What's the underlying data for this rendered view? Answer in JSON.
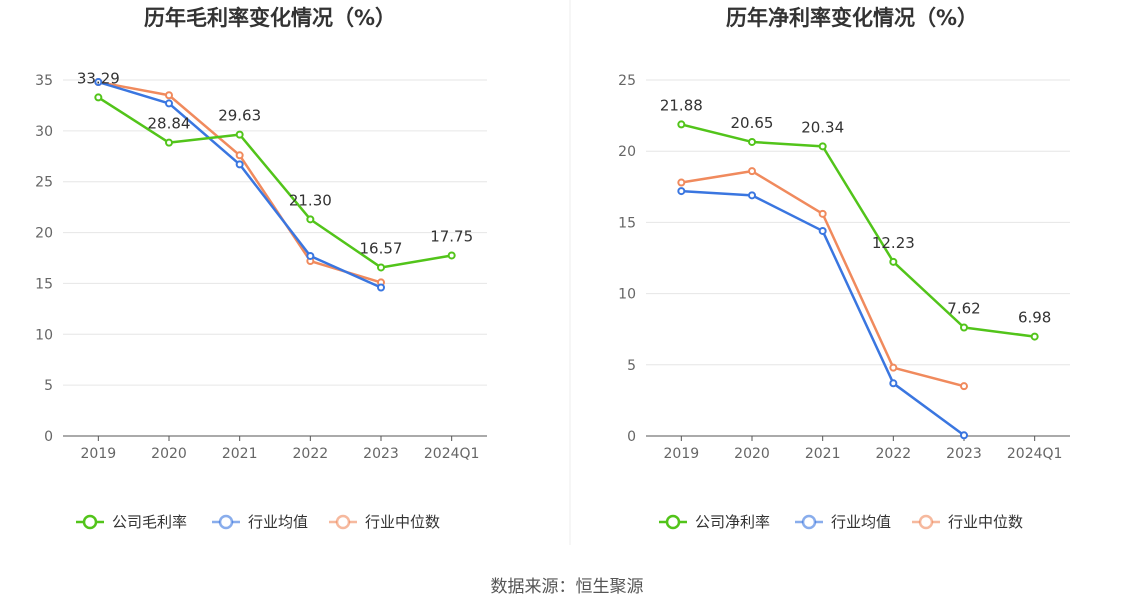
{
  "source_text": "数据来源：恒生聚源",
  "chart_data": [
    {
      "type": "line",
      "title": "历年毛利率变化情况（%）",
      "categories": [
        "2019",
        "2020",
        "2021",
        "2022",
        "2023",
        "2024Q1"
      ],
      "ylim": [
        0,
        35
      ],
      "yticks": [
        0,
        5,
        10,
        15,
        20,
        25,
        30,
        35
      ],
      "grid": true,
      "legend_position": "bottom",
      "labeled_series": 0,
      "series": [
        {
          "name": "公司毛利率",
          "color": "#52c41a",
          "values": [
            33.29,
            28.84,
            29.63,
            21.3,
            16.57,
            17.75
          ],
          "labels": [
            "33.29",
            "28.84",
            "29.63",
            "21.30",
            "16.57",
            "17.75"
          ]
        },
        {
          "name": "行业均值",
          "color": "#3a76e0",
          "values": [
            34.8,
            32.7,
            26.7,
            17.7,
            14.6,
            null
          ]
        },
        {
          "name": "行业中位数",
          "color": "#f08a5d",
          "values": [
            34.8,
            33.5,
            27.6,
            17.2,
            15.1,
            null
          ]
        }
      ]
    },
    {
      "type": "line",
      "title": "历年净利率变化情况（%）",
      "categories": [
        "2019",
        "2020",
        "2021",
        "2022",
        "2023",
        "2024Q1"
      ],
      "ylim": [
        0,
        25
      ],
      "yticks": [
        0,
        5,
        10,
        15,
        20,
        25
      ],
      "grid": true,
      "legend_position": "bottom",
      "labeled_series": 0,
      "series": [
        {
          "name": "公司净利率",
          "color": "#52c41a",
          "values": [
            21.88,
            20.65,
            20.34,
            12.23,
            7.62,
            6.98
          ],
          "labels": [
            "21.88",
            "20.65",
            "20.34",
            "12.23",
            "7.62",
            "6.98"
          ]
        },
        {
          "name": "行业均值",
          "color": "#3a76e0",
          "values": [
            17.2,
            16.9,
            14.4,
            3.7,
            0.05,
            null
          ]
        },
        {
          "name": "行业中位数",
          "color": "#f08a5d",
          "values": [
            17.8,
            18.6,
            15.6,
            4.8,
            3.5,
            null
          ]
        }
      ]
    }
  ]
}
